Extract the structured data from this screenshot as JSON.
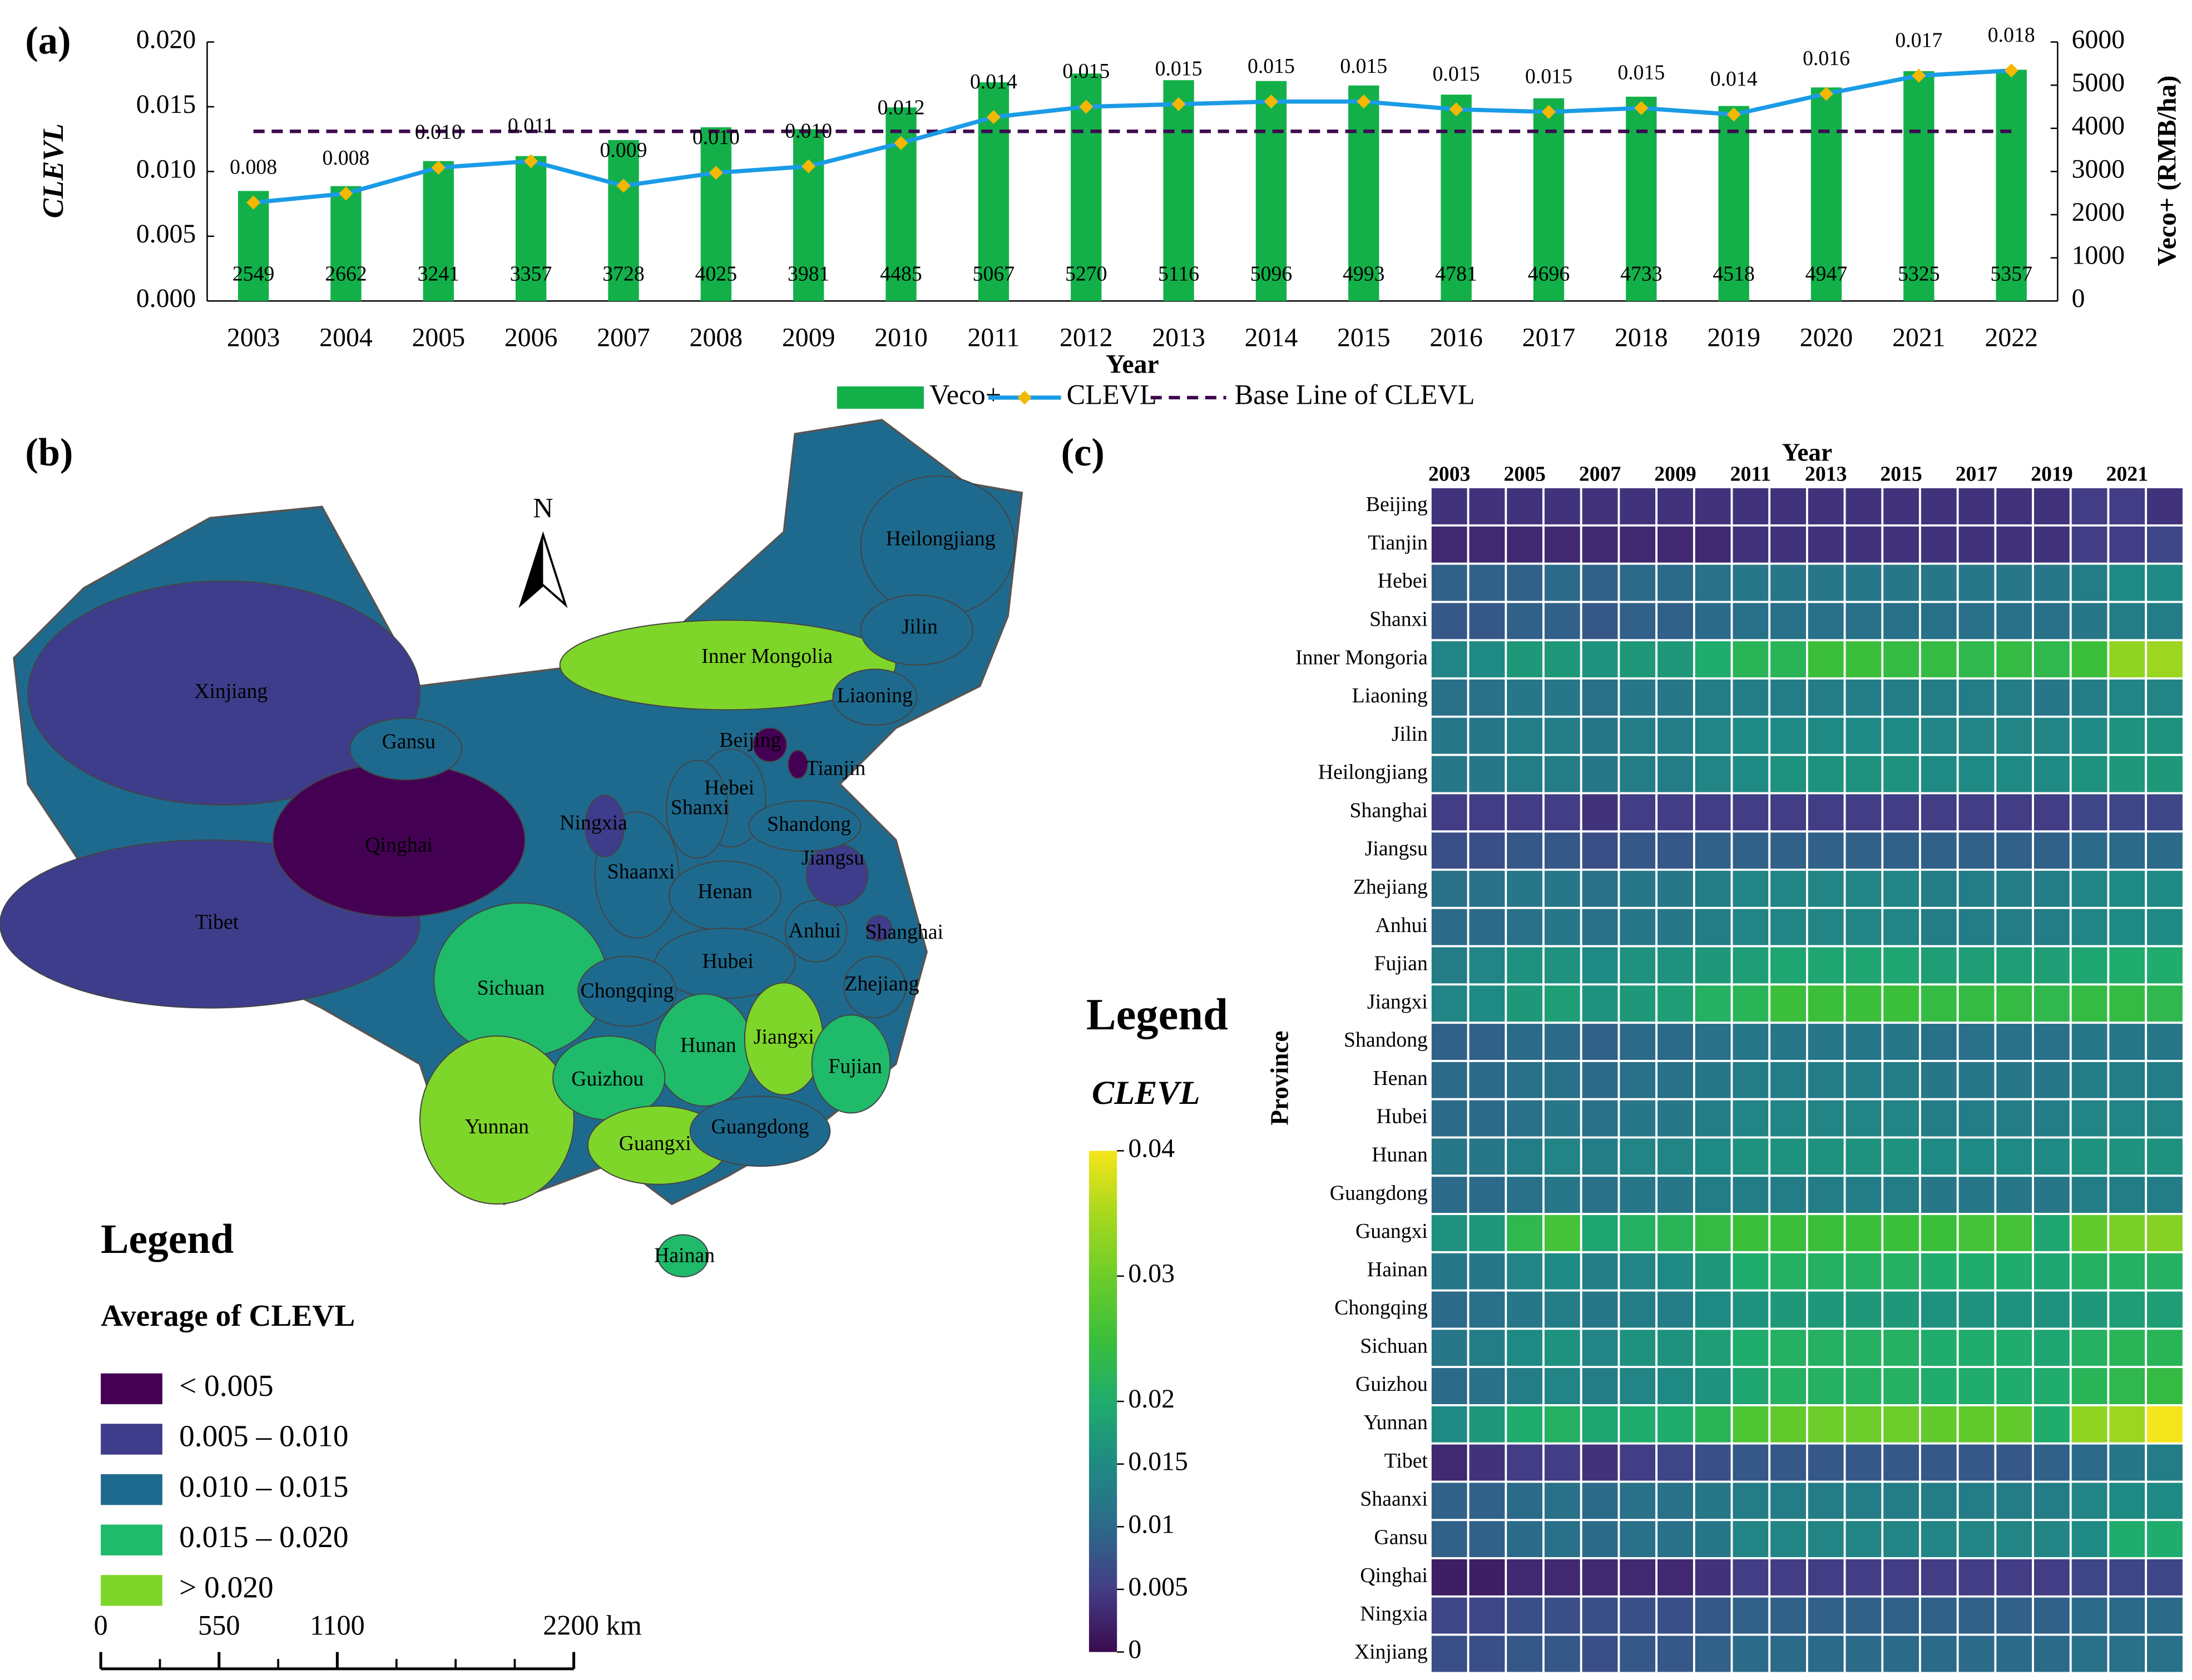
{
  "chart_data": [
    {
      "type": "bar",
      "panel": "(a)",
      "xlabel": "Year",
      "ylabel": "CLEVL",
      "y2label": "Veco+ (RMB/ha)",
      "categories": [
        "2003",
        "2004",
        "2005",
        "2006",
        "2007",
        "2008",
        "2009",
        "2010",
        "2011",
        "2012",
        "2013",
        "2014",
        "2015",
        "2016",
        "2017",
        "2018",
        "2019",
        "2020",
        "2021",
        "2022"
      ],
      "series": [
        {
          "name": "Veco+",
          "color": "#13b04a",
          "axis": "y2",
          "values": [
            2549,
            2662,
            3241,
            3357,
            3728,
            4025,
            3981,
            4485,
            5067,
            5270,
            5116,
            5096,
            4993,
            4781,
            4696,
            4733,
            4518,
            4947,
            5325,
            5357
          ]
        },
        {
          "name": "CLEVL",
          "type": "line",
          "color": "#1a9be6",
          "marker_color": "#f5b800",
          "values": [
            0.0076,
            0.0083,
            0.0103,
            0.0108,
            0.0089,
            0.0099,
            0.0104,
            0.0122,
            0.0142,
            0.015,
            0.0152,
            0.0154,
            0.0154,
            0.0148,
            0.0146,
            0.0149,
            0.0144,
            0.016,
            0.0174,
            0.0178
          ],
          "value_labels": [
            "0.008",
            "0.008",
            "0.010",
            "0.011",
            "0.009",
            "0.010",
            "0.010",
            "0.012",
            "0.014",
            "0.015",
            "0.015",
            "0.015",
            "0.015",
            "0.015",
            "0.015",
            "0.015",
            "0.014",
            "0.016",
            "0.017",
            "0.018"
          ]
        }
      ],
      "baseline": {
        "name": "Base Line of CLEVL",
        "value": 0.0131,
        "color": "#3d0a4f"
      },
      "ylim": [
        0,
        0.02
      ],
      "yticks": [
        {
          "value": 0,
          "label": "0.000"
        },
        {
          "value": 0.005,
          "label": "0.005"
        },
        {
          "value": 0.01,
          "label": "0.010"
        },
        {
          "value": 0.015,
          "label": "0.015"
        },
        {
          "value": 0.02,
          "label": "0.020"
        }
      ],
      "y2lim": [
        0,
        6000
      ],
      "y2ticks": [
        0,
        1000,
        2000,
        3000,
        4000,
        5000,
        6000
      ]
    },
    {
      "type": "map",
      "panel": "(b)",
      "north": "N",
      "legend_title": "Legend",
      "legend_subtitle": "Average of CLEVL",
      "classes": [
        {
          "label": "< 0.005",
          "color": "#440154"
        },
        {
          "label": "0.005 – 0.010",
          "color": "#3e3d8b"
        },
        {
          "label": "0.010 – 0.015",
          "color": "#1e6a8e"
        },
        {
          "label": "0.015 – 0.020",
          "color": "#1fba6a"
        },
        {
          "label": "> 0.020",
          "color": "#7fd62a"
        }
      ],
      "regions": [
        {
          "name": "Xinjiang",
          "class": 1
        },
        {
          "name": "Tibet",
          "class": 1
        },
        {
          "name": "Qinghai",
          "class": 0
        },
        {
          "name": "Gansu",
          "class": 2
        },
        {
          "name": "Inner Mongolia",
          "class": 4
        },
        {
          "name": "Heilongjiang",
          "class": 2
        },
        {
          "name": "Jilin",
          "class": 2
        },
        {
          "name": "Liaoning",
          "class": 2
        },
        {
          "name": "Sichuan",
          "class": 3
        },
        {
          "name": "Yunnan",
          "class": 4
        },
        {
          "name": "Shaanxi",
          "class": 2
        },
        {
          "name": "Hebei",
          "class": 2
        },
        {
          "name": "Shanxi",
          "class": 2
        },
        {
          "name": "Henan",
          "class": 2
        },
        {
          "name": "Hubei",
          "class": 2
        },
        {
          "name": "Hunan",
          "class": 3
        },
        {
          "name": "Guizhou",
          "class": 3
        },
        {
          "name": "Guangxi",
          "class": 4
        },
        {
          "name": "Guangdong",
          "class": 2
        },
        {
          "name": "Jiangxi",
          "class": 4
        },
        {
          "name": "Fujian",
          "class": 3
        },
        {
          "name": "Zhejiang",
          "class": 2
        },
        {
          "name": "Anhui",
          "class": 2
        },
        {
          "name": "Jiangsu",
          "class": 1
        },
        {
          "name": "Shandong",
          "class": 2
        },
        {
          "name": "Chongqing",
          "class": 2
        },
        {
          "name": "Ningxia",
          "class": 1
        },
        {
          "name": "Beijing",
          "class": 0
        },
        {
          "name": "Tianjin",
          "class": 0
        },
        {
          "name": "Shanghai",
          "class": 1
        },
        {
          "name": "Hainan",
          "class": 3
        }
      ],
      "scale_ticks": [
        0,
        550,
        1100,
        {
          "value": 2200,
          "label": "2200 km"
        }
      ]
    },
    {
      "type": "heatmap",
      "panel": "(c)",
      "xlabel": "Year",
      "ylabel": "Province",
      "x": [
        2003,
        2004,
        2005,
        2006,
        2007,
        2008,
        2009,
        2010,
        2011,
        2012,
        2013,
        2014,
        2015,
        2016,
        2017,
        2018,
        2019,
        2020,
        2021,
        2022
      ],
      "xticks": [
        2003,
        2005,
        2007,
        2009,
        2011,
        2013,
        2015,
        2017,
        2019,
        2021
      ],
      "rows": [
        "Beijing",
        "Tianjin",
        "Hebei",
        "Shanxi",
        "Inner Mongoria",
        "Liaoning",
        "Jilin",
        "Heilongjiang",
        "Shanghai",
        "Jiangsu",
        "Zhejiang",
        "Anhui",
        "Fujian",
        "Jiangxi",
        "Shandong",
        "Henan",
        "Hubei",
        "Hunan",
        "Guangdong",
        "Guangxi",
        "Hainan",
        "Chongqing",
        "Sichuan",
        "Guizhou",
        "Yunnan",
        "Tibet",
        "Shaanxi",
        "Gansu",
        "Qinghai",
        "Ningxia",
        "Xinjiang"
      ],
      "values": [
        [
          0.004,
          0.004,
          0.004,
          0.004,
          0.004,
          0.004,
          0.004,
          0.004,
          0.004,
          0.004,
          0.004,
          0.004,
          0.004,
          0.004,
          0.004,
          0.004,
          0.004,
          0.005,
          0.005,
          0.004
        ],
        [
          0.003,
          0.003,
          0.003,
          0.003,
          0.003,
          0.003,
          0.003,
          0.003,
          0.004,
          0.004,
          0.004,
          0.004,
          0.004,
          0.004,
          0.004,
          0.004,
          0.004,
          0.005,
          0.005,
          0.006
        ],
        [
          0.009,
          0.009,
          0.009,
          0.01,
          0.009,
          0.01,
          0.01,
          0.011,
          0.012,
          0.012,
          0.012,
          0.012,
          0.012,
          0.012,
          0.012,
          0.012,
          0.012,
          0.013,
          0.015,
          0.015
        ],
        [
          0.008,
          0.008,
          0.009,
          0.009,
          0.008,
          0.009,
          0.009,
          0.01,
          0.011,
          0.011,
          0.011,
          0.011,
          0.011,
          0.011,
          0.011,
          0.011,
          0.011,
          0.012,
          0.013,
          0.013
        ],
        [
          0.014,
          0.015,
          0.017,
          0.017,
          0.016,
          0.017,
          0.017,
          0.02,
          0.022,
          0.022,
          0.025,
          0.025,
          0.024,
          0.024,
          0.023,
          0.024,
          0.023,
          0.025,
          0.033,
          0.034
        ],
        [
          0.011,
          0.011,
          0.012,
          0.012,
          0.011,
          0.012,
          0.012,
          0.013,
          0.013,
          0.013,
          0.013,
          0.013,
          0.013,
          0.013,
          0.013,
          0.013,
          0.012,
          0.013,
          0.014,
          0.014
        ],
        [
          0.012,
          0.012,
          0.013,
          0.013,
          0.012,
          0.013,
          0.013,
          0.014,
          0.015,
          0.015,
          0.015,
          0.015,
          0.015,
          0.014,
          0.014,
          0.014,
          0.014,
          0.015,
          0.016,
          0.016
        ],
        [
          0.012,
          0.012,
          0.013,
          0.013,
          0.012,
          0.013,
          0.013,
          0.014,
          0.015,
          0.016,
          0.016,
          0.016,
          0.016,
          0.015,
          0.015,
          0.015,
          0.015,
          0.016,
          0.017,
          0.017
        ],
        [
          0.005,
          0.005,
          0.005,
          0.005,
          0.004,
          0.005,
          0.005,
          0.005,
          0.005,
          0.005,
          0.005,
          0.005,
          0.005,
          0.005,
          0.005,
          0.005,
          0.005,
          0.006,
          0.006,
          0.006
        ],
        [
          0.007,
          0.007,
          0.008,
          0.008,
          0.007,
          0.008,
          0.008,
          0.009,
          0.009,
          0.009,
          0.009,
          0.009,
          0.009,
          0.009,
          0.009,
          0.009,
          0.009,
          0.01,
          0.01,
          0.01
        ],
        [
          0.011,
          0.011,
          0.012,
          0.012,
          0.011,
          0.012,
          0.012,
          0.013,
          0.014,
          0.014,
          0.014,
          0.014,
          0.014,
          0.013,
          0.013,
          0.013,
          0.013,
          0.014,
          0.015,
          0.015
        ],
        [
          0.01,
          0.01,
          0.011,
          0.012,
          0.011,
          0.012,
          0.012,
          0.013,
          0.014,
          0.014,
          0.014,
          0.014,
          0.014,
          0.013,
          0.013,
          0.013,
          0.013,
          0.014,
          0.015,
          0.015
        ],
        [
          0.013,
          0.014,
          0.016,
          0.016,
          0.015,
          0.016,
          0.016,
          0.017,
          0.018,
          0.019,
          0.019,
          0.019,
          0.019,
          0.018,
          0.018,
          0.018,
          0.018,
          0.019,
          0.02,
          0.02
        ],
        [
          0.014,
          0.015,
          0.017,
          0.018,
          0.016,
          0.017,
          0.018,
          0.021,
          0.022,
          0.025,
          0.025,
          0.025,
          0.025,
          0.024,
          0.024,
          0.024,
          0.023,
          0.024,
          0.024,
          0.023
        ],
        [
          0.009,
          0.009,
          0.01,
          0.01,
          0.009,
          0.01,
          0.01,
          0.011,
          0.012,
          0.012,
          0.012,
          0.012,
          0.012,
          0.011,
          0.011,
          0.011,
          0.011,
          0.012,
          0.012,
          0.012
        ],
        [
          0.01,
          0.01,
          0.011,
          0.011,
          0.01,
          0.011,
          0.011,
          0.012,
          0.013,
          0.013,
          0.013,
          0.013,
          0.013,
          0.012,
          0.012,
          0.012,
          0.012,
          0.013,
          0.013,
          0.013
        ],
        [
          0.01,
          0.01,
          0.011,
          0.012,
          0.011,
          0.012,
          0.012,
          0.013,
          0.014,
          0.014,
          0.014,
          0.014,
          0.014,
          0.013,
          0.013,
          0.013,
          0.013,
          0.014,
          0.014,
          0.014
        ],
        [
          0.012,
          0.012,
          0.013,
          0.014,
          0.013,
          0.014,
          0.014,
          0.015,
          0.016,
          0.016,
          0.016,
          0.016,
          0.016,
          0.015,
          0.015,
          0.015,
          0.015,
          0.016,
          0.016,
          0.016
        ],
        [
          0.01,
          0.01,
          0.011,
          0.012,
          0.011,
          0.012,
          0.012,
          0.013,
          0.013,
          0.013,
          0.013,
          0.013,
          0.013,
          0.012,
          0.012,
          0.012,
          0.012,
          0.013,
          0.013,
          0.013
        ],
        [
          0.016,
          0.017,
          0.023,
          0.026,
          0.019,
          0.021,
          0.022,
          0.024,
          0.025,
          0.025,
          0.025,
          0.025,
          0.025,
          0.025,
          0.026,
          0.026,
          0.019,
          0.029,
          0.031,
          0.032
        ],
        [
          0.012,
          0.012,
          0.014,
          0.015,
          0.013,
          0.014,
          0.015,
          0.017,
          0.02,
          0.021,
          0.021,
          0.021,
          0.021,
          0.02,
          0.02,
          0.02,
          0.019,
          0.021,
          0.021,
          0.021
        ],
        [
          0.01,
          0.011,
          0.012,
          0.013,
          0.012,
          0.013,
          0.013,
          0.015,
          0.016,
          0.017,
          0.017,
          0.017,
          0.017,
          0.016,
          0.016,
          0.016,
          0.016,
          0.017,
          0.018,
          0.018
        ],
        [
          0.012,
          0.013,
          0.015,
          0.016,
          0.014,
          0.016,
          0.016,
          0.018,
          0.02,
          0.021,
          0.021,
          0.021,
          0.021,
          0.02,
          0.02,
          0.02,
          0.019,
          0.021,
          0.022,
          0.022
        ],
        [
          0.01,
          0.011,
          0.013,
          0.014,
          0.013,
          0.014,
          0.015,
          0.016,
          0.019,
          0.021,
          0.021,
          0.021,
          0.021,
          0.02,
          0.02,
          0.02,
          0.02,
          0.022,
          0.023,
          0.024
        ],
        [
          0.015,
          0.017,
          0.02,
          0.021,
          0.019,
          0.02,
          0.02,
          0.022,
          0.027,
          0.029,
          0.03,
          0.03,
          0.03,
          0.029,
          0.029,
          0.029,
          0.02,
          0.033,
          0.034,
          0.04
        ],
        [
          0.003,
          0.004,
          0.005,
          0.005,
          0.004,
          0.005,
          0.006,
          0.007,
          0.008,
          0.008,
          0.008,
          0.008,
          0.008,
          0.008,
          0.008,
          0.008,
          0.009,
          0.01,
          0.012,
          0.013
        ],
        [
          0.009,
          0.009,
          0.01,
          0.011,
          0.01,
          0.011,
          0.011,
          0.012,
          0.013,
          0.013,
          0.013,
          0.013,
          0.013,
          0.013,
          0.013,
          0.013,
          0.013,
          0.014,
          0.015,
          0.015
        ],
        [
          0.009,
          0.009,
          0.01,
          0.011,
          0.01,
          0.011,
          0.011,
          0.012,
          0.014,
          0.014,
          0.014,
          0.014,
          0.014,
          0.014,
          0.014,
          0.014,
          0.014,
          0.015,
          0.02,
          0.02
        ],
        [
          0.002,
          0.002,
          0.003,
          0.003,
          0.003,
          0.003,
          0.003,
          0.004,
          0.005,
          0.005,
          0.005,
          0.005,
          0.005,
          0.005,
          0.005,
          0.005,
          0.005,
          0.006,
          0.006,
          0.006
        ],
        [
          0.006,
          0.006,
          0.007,
          0.007,
          0.007,
          0.007,
          0.007,
          0.008,
          0.009,
          0.009,
          0.009,
          0.009,
          0.009,
          0.009,
          0.009,
          0.009,
          0.009,
          0.01,
          0.01,
          0.01
        ],
        [
          0.007,
          0.007,
          0.008,
          0.008,
          0.007,
          0.008,
          0.008,
          0.009,
          0.01,
          0.01,
          0.01,
          0.01,
          0.01,
          0.01,
          0.01,
          0.01,
          0.01,
          0.011,
          0.011,
          0.011
        ]
      ],
      "colorbar": {
        "title": "Legend",
        "label": "CLEVL",
        "lim": [
          0,
          0.04
        ],
        "ticks": [
          0,
          0.005,
          0.01,
          0.015,
          0.02,
          0.03,
          0.04
        ]
      }
    }
  ]
}
